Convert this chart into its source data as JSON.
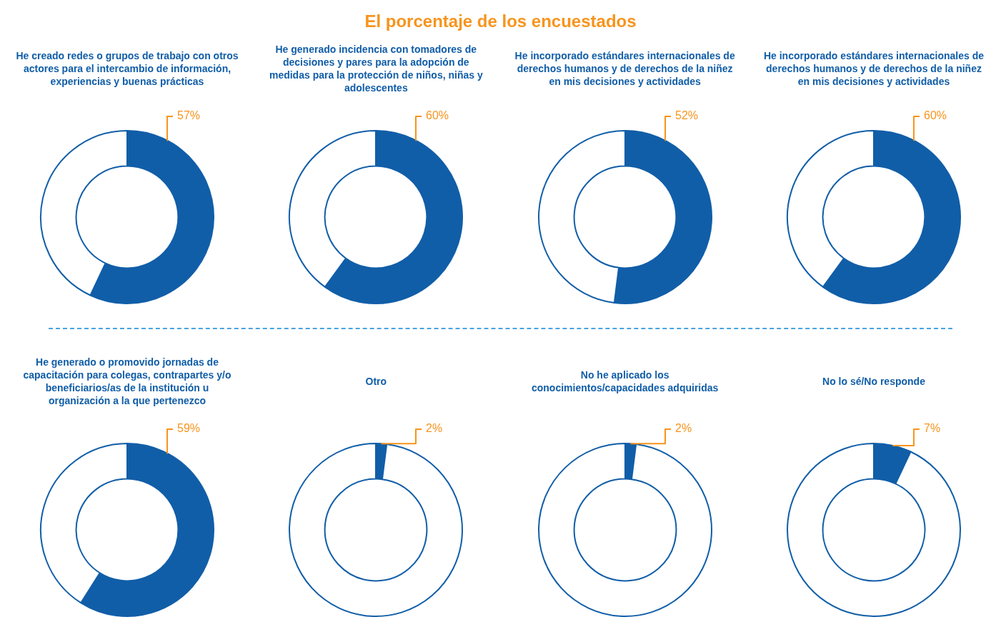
{
  "chart_data": [
    {
      "type": "other",
      "title": "El porcentaje de los encuestados"
    },
    {
      "type": "donut",
      "title": "He creado redes o grupos de trabajo con otros actores para el intercambio de información, experiencias y buenas prácticas",
      "categories": [
        null,
        null
      ],
      "values": [
        57,
        43
      ],
      "colors": [
        "#115ea8",
        "#ffffff"
      ],
      "value_labels": [
        "57%",
        null
      ]
    },
    {
      "type": "donut",
      "title": "He generado incidencia con tomadores de decisiones y pares para la adopción de medidas para la protección de niños, niñas y adolescentes",
      "categories": [
        null,
        null
      ],
      "values": [
        60,
        40
      ],
      "colors": [
        "#115ea8",
        "#ffffff"
      ],
      "value_labels": [
        "60%",
        null
      ]
    },
    {
      "type": "donut",
      "title": "He incorporado estándares internacionales de derechos humanos y de derechos de la niñez en mis decisiones y actividades",
      "categories": [
        null,
        null
      ],
      "values": [
        52,
        48
      ],
      "colors": [
        "#115ea8",
        "#ffffff"
      ],
      "value_labels": [
        "52%",
        null
      ]
    },
    {
      "type": "donut",
      "title": "He incorporado estándares internacionales de derechos humanos y de derechos de la niñez en mis decisiones y actividades",
      "categories": [
        null,
        null
      ],
      "values": [
        60,
        40
      ],
      "colors": [
        "#115ea8",
        "#ffffff"
      ],
      "value_labels": [
        "60%",
        null
      ]
    },
    {
      "type": "donut",
      "title": "He generado o promovido jornadas de capacitación para colegas, contrapartes y/o beneficiarios/as de la institución u organización a la que pertenezco",
      "categories": [
        null,
        null
      ],
      "values": [
        59,
        41
      ],
      "colors": [
        "#115ea8",
        "#ffffff"
      ],
      "value_labels": [
        "59%",
        null
      ]
    },
    {
      "type": "donut",
      "title": "Otro",
      "categories": [
        null,
        null
      ],
      "values": [
        2,
        98
      ],
      "colors": [
        "#115ea8",
        "#ffffff"
      ],
      "value_labels": [
        "2%",
        null
      ]
    },
    {
      "type": "donut",
      "title": "No he aplicado los conocimientos/capacidades adquiridas",
      "categories": [
        null,
        null
      ],
      "values": [
        2,
        98
      ],
      "colors": [
        "#115ea8",
        "#ffffff"
      ],
      "value_labels": [
        "2%",
        null
      ]
    },
    {
      "type": "donut",
      "title": "No lo sé/No responde",
      "categories": [
        null,
        null
      ],
      "values": [
        7,
        93
      ],
      "colors": [
        "#115ea8",
        "#ffffff"
      ],
      "value_labels": [
        "7%",
        null
      ]
    }
  ]
}
